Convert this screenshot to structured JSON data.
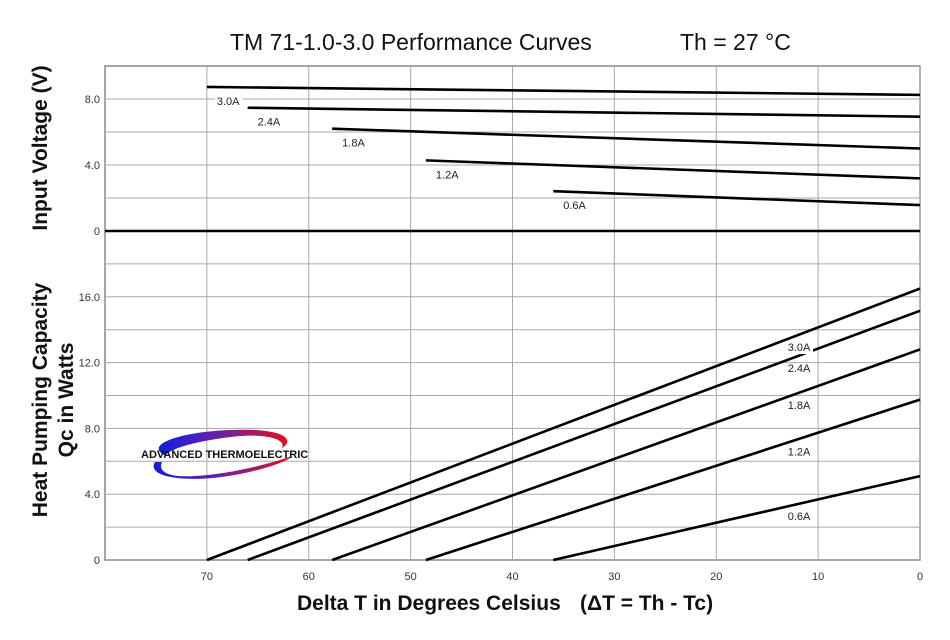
{
  "chart_data": {
    "type": "line",
    "title": "TM 71-1.0-3.0 Performance Curves",
    "subtitle": "Th = 27 °C",
    "xlabel": "Delta T in Degrees Celsius",
    "xlabel_note": "(ΔT = Th - Tc)",
    "xlim": [
      80,
      0
    ],
    "x_ticks": [
      "70",
      "60",
      "50",
      "40",
      "30",
      "20",
      "10",
      "0"
    ],
    "x_tick_values": [
      70,
      60,
      50,
      40,
      30,
      20,
      10,
      0
    ],
    "grid": true,
    "logo_text": "ADVANCED THERMOELECTRIC",
    "panels": [
      {
        "name": "voltage",
        "ylabel": "Input Voltage (V)",
        "ylim": [
          0,
          10
        ],
        "y_ticks": [
          "0",
          "4.0",
          "8.0"
        ],
        "y_tick_values": [
          0,
          4,
          8
        ],
        "series": [
          {
            "name": "3.0A",
            "x": [
              70,
              0
            ],
            "y": [
              8.73,
              8.25
            ]
          },
          {
            "name": "2.4A",
            "x": [
              66,
              0
            ],
            "y": [
              7.47,
              6.93
            ]
          },
          {
            "name": "1.8A",
            "x": [
              57.7,
              0
            ],
            "y": [
              6.2,
              5.0
            ]
          },
          {
            "name": "1.2A",
            "x": [
              48.5,
              0
            ],
            "y": [
              4.28,
              3.19
            ]
          },
          {
            "name": "0.6A",
            "x": [
              36,
              0
            ],
            "y": [
              2.41,
              1.57
            ]
          }
        ]
      },
      {
        "name": "heat-pumping",
        "ylabel": "Heat Pumping Capacity",
        "ylabel2": "Qc in Watts",
        "ylim": [
          0,
          20
        ],
        "y_ticks": [
          "0",
          "4.0",
          "8.0",
          "12.0",
          "16.0"
        ],
        "y_tick_values": [
          0,
          4,
          8,
          12,
          16
        ],
        "series": [
          {
            "name": "3.0A",
            "x": [
              70,
              0
            ],
            "y": [
              0,
              16.5
            ]
          },
          {
            "name": "2.4A",
            "x": [
              66,
              0
            ],
            "y": [
              0,
              15.15
            ]
          },
          {
            "name": "1.8A",
            "x": [
              57.7,
              0
            ],
            "y": [
              0,
              12.8
            ]
          },
          {
            "name": "1.2A",
            "x": [
              48.5,
              0
            ],
            "y": [
              0,
              9.75
            ]
          },
          {
            "name": "0.6A",
            "x": [
              36,
              0
            ],
            "y": [
              0,
              5.1
            ]
          }
        ]
      }
    ]
  }
}
